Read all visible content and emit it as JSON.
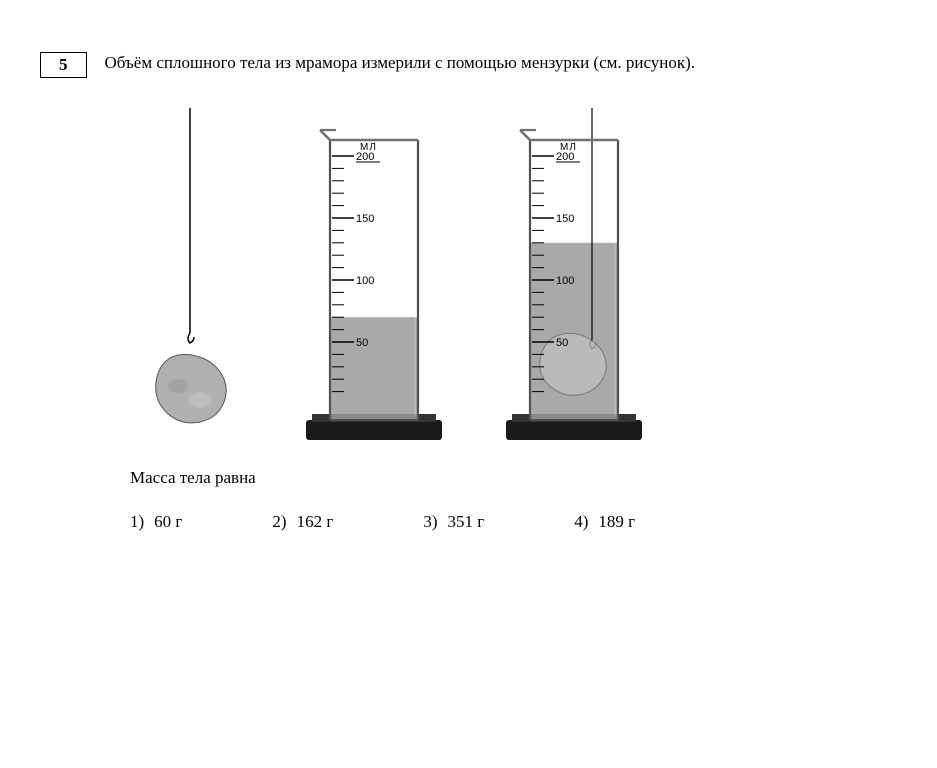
{
  "question_number": "5",
  "question_text": "Объём сплошного тела из мрамора измерили с помощью мензурки (см. рисунок).",
  "sub_prompt": "Масса тела равна",
  "options": [
    {
      "num": "1)",
      "label": "60 г"
    },
    {
      "num": "2)",
      "label": "162 г"
    },
    {
      "num": "3)",
      "label": "351 г"
    },
    {
      "num": "4)",
      "label": "189 г"
    }
  ],
  "figure": {
    "rock": {
      "fill": "#b0b0b0",
      "stroke": "#555555",
      "string_color": "#000000"
    },
    "cylinder_left": {
      "unit_label": "МЛ",
      "max": 200,
      "major_ticks": [
        50,
        100,
        150,
        200
      ],
      "minor_step": 10,
      "water_level": 70,
      "has_rock": false,
      "rim_color": "#707070",
      "scale_color": "#000000",
      "water_fill": "#9a9a9a",
      "glass_stroke": "#505050",
      "base_color": "#1a1a1a",
      "label_fontsize": 11
    },
    "cylinder_right": {
      "unit_label": "МЛ",
      "max": 200,
      "major_ticks": [
        50,
        100,
        150,
        200
      ],
      "minor_step": 10,
      "water_level": 130,
      "has_rock": true,
      "rim_color": "#707070",
      "scale_color": "#000000",
      "water_fill": "#9a9a9a",
      "glass_stroke": "#505050",
      "base_color": "#1a1a1a",
      "label_fontsize": 11,
      "rock_fill": "#c0c0c0",
      "rock_stroke": "#666666",
      "string_color": "#000000"
    }
  }
}
